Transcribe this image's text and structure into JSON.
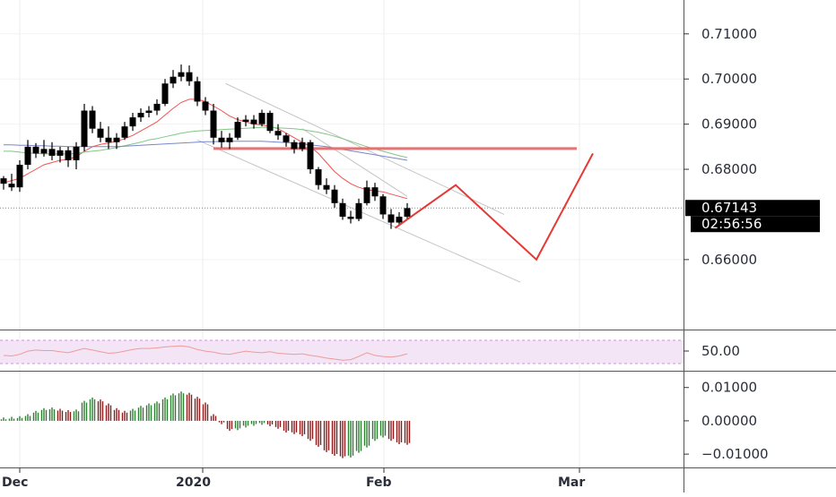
{
  "chart_data": {
    "type": "candlestick",
    "price_axis": {
      "ticks": [
        "0.71000",
        "0.70000",
        "0.69000",
        "0.68000",
        "0.66000"
      ],
      "tick_values": [
        0.71,
        0.7,
        0.69,
        0.68,
        0.66
      ],
      "range": [
        0.6445,
        0.7175
      ]
    },
    "current_price": {
      "label": "0.67143",
      "value": 0.67143,
      "countdown": "02:56:56"
    },
    "x_axis": {
      "labels": [
        "Dec",
        "2020",
        "Feb",
        "Mar"
      ]
    },
    "candles": [
      [
        0.678,
        0.6785,
        0.6755,
        0.6768
      ],
      [
        0.6768,
        0.679,
        0.6752,
        0.676
      ],
      [
        0.676,
        0.682,
        0.675,
        0.681
      ],
      [
        0.681,
        0.6865,
        0.68,
        0.685
      ],
      [
        0.685,
        0.6858,
        0.6825,
        0.6835
      ],
      [
        0.6835,
        0.6865,
        0.6828,
        0.6845
      ],
      [
        0.6845,
        0.686,
        0.682,
        0.683
      ],
      [
        0.683,
        0.685,
        0.6815,
        0.6842
      ],
      [
        0.6842,
        0.685,
        0.6805,
        0.682
      ],
      [
        0.682,
        0.686,
        0.68,
        0.685
      ],
      [
        0.685,
        0.6945,
        0.684,
        0.693
      ],
      [
        0.693,
        0.694,
        0.688,
        0.689
      ],
      [
        0.689,
        0.6905,
        0.686,
        0.687
      ],
      [
        0.687,
        0.6895,
        0.6845,
        0.686
      ],
      [
        0.686,
        0.688,
        0.6845,
        0.687
      ],
      [
        0.687,
        0.6905,
        0.6865,
        0.6895
      ],
      [
        0.6895,
        0.6925,
        0.6885,
        0.6915
      ],
      [
        0.6915,
        0.6935,
        0.6905,
        0.6925
      ],
      [
        0.6925,
        0.694,
        0.6915,
        0.693
      ],
      [
        0.693,
        0.6955,
        0.692,
        0.6945
      ],
      [
        0.6945,
        0.7,
        0.694,
        0.699
      ],
      [
        0.699,
        0.702,
        0.698,
        0.7005
      ],
      [
        0.7005,
        0.7032,
        0.6995,
        0.7015
      ],
      [
        0.7015,
        0.703,
        0.6985,
        0.6995
      ],
      [
        0.6995,
        0.7005,
        0.694,
        0.695
      ],
      [
        0.695,
        0.696,
        0.692,
        0.693
      ],
      [
        0.693,
        0.6945,
        0.6855,
        0.687
      ],
      [
        0.687,
        0.6885,
        0.6848,
        0.686
      ],
      [
        0.686,
        0.688,
        0.6845,
        0.687
      ],
      [
        0.687,
        0.6915,
        0.6865,
        0.6905
      ],
      [
        0.6905,
        0.692,
        0.6895,
        0.691
      ],
      [
        0.691,
        0.692,
        0.689,
        0.69
      ],
      [
        0.69,
        0.6932,
        0.6895,
        0.6925
      ],
      [
        0.6925,
        0.693,
        0.688,
        0.6885
      ],
      [
        0.6885,
        0.69,
        0.6865,
        0.6875
      ],
      [
        0.6875,
        0.688,
        0.685,
        0.686
      ],
      [
        0.686,
        0.6865,
        0.6835,
        0.6845
      ],
      [
        0.6845,
        0.687,
        0.684,
        0.686
      ],
      [
        0.686,
        0.6865,
        0.679,
        0.68
      ],
      [
        0.68,
        0.6805,
        0.6755,
        0.6765
      ],
      [
        0.6765,
        0.678,
        0.6745,
        0.6755
      ],
      [
        0.6755,
        0.6765,
        0.6715,
        0.6725
      ],
      [
        0.6725,
        0.6735,
        0.6688,
        0.6695
      ],
      [
        0.6695,
        0.6708,
        0.668,
        0.669
      ],
      [
        0.669,
        0.6735,
        0.6685,
        0.6725
      ],
      [
        0.6725,
        0.6775,
        0.672,
        0.676
      ],
      [
        0.676,
        0.677,
        0.673,
        0.674
      ],
      [
        0.674,
        0.6745,
        0.669,
        0.67
      ],
      [
        0.67,
        0.6712,
        0.6668,
        0.6682
      ],
      [
        0.6682,
        0.6705,
        0.6675,
        0.6695
      ],
      [
        0.6695,
        0.6725,
        0.669,
        0.6714
      ]
    ],
    "moving_averages": [
      {
        "color": "#ef5350",
        "values": [
          0.677,
          0.6775,
          0.678,
          0.679,
          0.68,
          0.681,
          0.6815,
          0.682,
          0.6822,
          0.6828,
          0.684,
          0.685,
          0.6855,
          0.6858,
          0.6862,
          0.6868,
          0.6875,
          0.6885,
          0.6895,
          0.6905,
          0.692,
          0.6935,
          0.6948,
          0.6955,
          0.6955,
          0.695,
          0.694,
          0.693,
          0.6918,
          0.691,
          0.6905,
          0.69,
          0.6898,
          0.6895,
          0.689,
          0.688,
          0.687,
          0.686,
          0.685,
          0.6835,
          0.6815,
          0.6795,
          0.678,
          0.6768,
          0.676,
          0.6755,
          0.6752,
          0.675,
          0.6745,
          0.674,
          0.6735
        ]
      },
      {
        "color": "#81c784",
        "values": [
          0.684,
          0.684,
          0.6838,
          0.6836,
          0.6835,
          0.6834,
          0.6834,
          0.6834,
          0.6834,
          0.6835,
          0.6838,
          0.684,
          0.6842,
          0.6845,
          0.6848,
          0.6852,
          0.6856,
          0.686,
          0.6865,
          0.6868,
          0.6872,
          0.6876,
          0.688,
          0.6883,
          0.6885,
          0.6886,
          0.6887,
          0.6888,
          0.6889,
          0.689,
          0.6891,
          0.6892,
          0.6893,
          0.6893,
          0.6892,
          0.6891,
          0.689,
          0.6888,
          0.6885,
          0.6882,
          0.6878,
          0.6873,
          0.6868,
          0.6862,
          0.6856,
          0.685,
          0.6845,
          0.684,
          0.6835,
          0.683,
          0.6826
        ]
      },
      {
        "color": "#7986cb",
        "values": [
          0.6854,
          0.6854,
          0.6853,
          0.6853,
          0.6852,
          0.6852,
          0.6851,
          0.6851,
          0.685,
          0.685,
          0.685,
          0.685,
          0.685,
          0.685,
          0.685,
          0.6851,
          0.6852,
          0.6853,
          0.6854,
          0.6855,
          0.6856,
          0.6857,
          0.6858,
          0.6859,
          0.686,
          0.6861,
          0.6861,
          0.6862,
          0.6862,
          0.6862,
          0.6862,
          0.6862,
          0.6862,
          0.6861,
          0.686,
          0.6859,
          0.6858,
          0.6856,
          0.6854,
          0.6852,
          0.685,
          0.6847,
          0.6844,
          0.6841,
          0.6838,
          0.6835,
          0.6832,
          0.6829,
          0.6826,
          0.6823,
          0.682
        ]
      }
    ],
    "annotations": {
      "resistance_line": {
        "color": "#e57373",
        "value": 0.6846,
        "from_bar": 26,
        "to_bar": 71
      },
      "projection_path": {
        "color": "#e53935",
        "points": [
          [
            48.5,
            0.667
          ],
          [
            56,
            0.6765
          ],
          [
            66,
            0.66
          ],
          [
            73,
            0.6835
          ]
        ]
      },
      "channel_lines": [
        {
          "color": "#c4c4c4",
          "points": [
            [
              27.5,
              0.699
            ],
            [
              62,
              0.67
            ]
          ]
        },
        {
          "color": "#c4c4c4",
          "points": [
            [
              24,
              0.6865
            ],
            [
              64,
              0.655
            ]
          ]
        },
        {
          "color": "#c4c4c4",
          "points": [
            [
              37,
              0.689
            ],
            [
              50,
              0.674
            ]
          ]
        }
      ]
    },
    "rsi": {
      "label": "50.00",
      "values": [
        47,
        46,
        49,
        55,
        57,
        56,
        56,
        54,
        52,
        56,
        60,
        57,
        54,
        51,
        52,
        55,
        58,
        60,
        60,
        61,
        63,
        64,
        65,
        63,
        58,
        55,
        53,
        50,
        49,
        52,
        55,
        53,
        52,
        54,
        51,
        50,
        49,
        50,
        47,
        45,
        42,
        40,
        38,
        39,
        45,
        52,
        47,
        45,
        44,
        46,
        50
      ]
    },
    "macd": {
      "ticks": [
        "0.01000",
        "0.00000",
        "−0.01000"
      ],
      "tick_values": [
        0.01,
        0.0,
        -0.01
      ],
      "range": [
        -0.014,
        0.0145
      ],
      "values": [
        0.001,
        0.0012,
        0.0014,
        0.002,
        0.003,
        0.0038,
        0.004,
        0.0036,
        0.0032,
        0.0034,
        0.006,
        0.007,
        0.0064,
        0.0052,
        0.0038,
        0.003,
        0.0036,
        0.0045,
        0.0052,
        0.0058,
        0.007,
        0.0082,
        0.0088,
        0.0084,
        0.0072,
        0.0055,
        0.002,
        -0.001,
        -0.003,
        -0.0028,
        -0.002,
        -0.0015,
        -0.0012,
        -0.0016,
        -0.0024,
        -0.0035,
        -0.004,
        -0.0046,
        -0.006,
        -0.0078,
        -0.0094,
        -0.0105,
        -0.0112,
        -0.011,
        -0.0096,
        -0.008,
        -0.006,
        -0.005,
        -0.006,
        -0.007,
        -0.0072
      ]
    }
  }
}
